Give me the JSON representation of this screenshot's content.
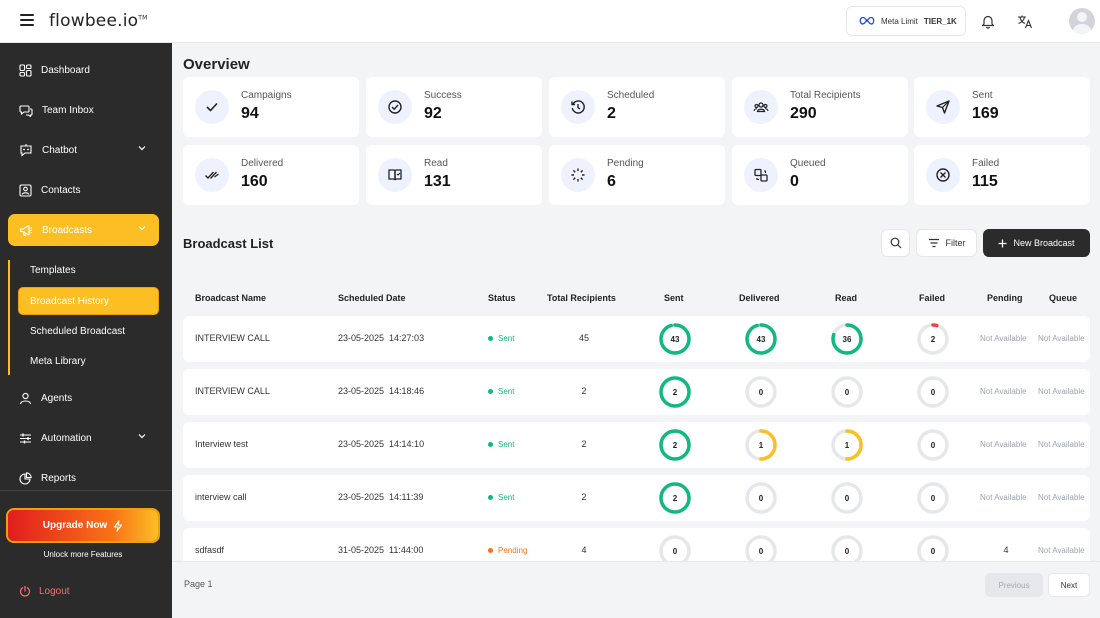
{
  "header": {
    "logo": "flowbee.io",
    "logo_mark": "TM",
    "meta_limit_label": "Meta Limit",
    "meta_limit_tier": "TIER_1K"
  },
  "sidebar": {
    "items": [
      {
        "label": "Dashboard",
        "icon": "dashboard-icon"
      },
      {
        "label": "Team Inbox",
        "icon": "chat-icon"
      },
      {
        "label": "Chatbot",
        "icon": "chatbot-icon"
      },
      {
        "label": "Contacts",
        "icon": "contacts-icon"
      },
      {
        "label": "Broadcasts",
        "icon": "megaphone-icon"
      },
      {
        "label": "Agents",
        "icon": "agents-icon"
      },
      {
        "label": "Automation",
        "icon": "sliders-icon"
      },
      {
        "label": "Reports",
        "icon": "pie-chart-icon"
      }
    ],
    "sub_items": [
      "Templates",
      "Broadcast History",
      "Scheduled Broadcast",
      "Meta Library"
    ],
    "upgrade_label": "Upgrade Now",
    "unlock_text": "Unlock more Features",
    "logout_label": "Logout"
  },
  "overview": {
    "title": "Overview",
    "stats": [
      {
        "label": "Campaigns",
        "value": "94"
      },
      {
        "label": "Success",
        "value": "92"
      },
      {
        "label": "Scheduled",
        "value": "2"
      },
      {
        "label": "Total Recipients",
        "value": "290"
      },
      {
        "label": "Sent",
        "value": "169"
      },
      {
        "label": "Delivered",
        "value": "160"
      },
      {
        "label": "Read",
        "value": "131"
      },
      {
        "label": "Pending",
        "value": "6"
      },
      {
        "label": "Queued",
        "value": "0"
      },
      {
        "label": "Failed",
        "value": "115"
      }
    ]
  },
  "broadcast_list": {
    "title": "Broadcast List",
    "filter_label": "Filter",
    "new_label": "New Broadcast",
    "columns": [
      "Broadcast Name",
      "Scheduled Date",
      "Status",
      "Total Recipients",
      "Sent",
      "Delivered",
      "Read",
      "Failed",
      "Pending",
      "Queue"
    ],
    "rows": [
      {
        "name": "INTERVIEW CALL",
        "date": "23-05-2025  14:27:03",
        "status": "Sent",
        "total": "45",
        "sent": "43",
        "delivered": "43",
        "read": "36",
        "failed": "2",
        "pending": "Not Available",
        "queue": "Not Available"
      },
      {
        "name": "INTERVIEW CALL",
        "date": "23-05-2025  14:18:46",
        "status": "Sent",
        "total": "2",
        "sent": "2",
        "delivered": "0",
        "read": "0",
        "failed": "0",
        "pending": "Not Available",
        "queue": "Not Available"
      },
      {
        "name": "Interview test",
        "date": "23-05-2025  14:14:10",
        "status": "Sent",
        "total": "2",
        "sent": "2",
        "delivered": "1",
        "read": "1",
        "failed": "0",
        "pending": "Not Available",
        "queue": "Not Available"
      },
      {
        "name": "interview call",
        "date": "23-05-2025  14:11:39",
        "status": "Sent",
        "total": "2",
        "sent": "2",
        "delivered": "0",
        "read": "0",
        "failed": "0",
        "pending": "Not Available",
        "queue": "Not Available"
      },
      {
        "name": "sdfasdf",
        "date": "31-05-2025  11:44:00",
        "status": "Pending",
        "total": "4",
        "sent": "0",
        "delivered": "0",
        "read": "0",
        "failed": "0",
        "pending": "4",
        "queue": "Not Available"
      }
    ]
  },
  "pagination": {
    "page_label": "Page 1",
    "prev_label": "Previous",
    "next_label": "Next"
  },
  "colors": {
    "accent": "#fbbf24",
    "sent_green": "#10b981",
    "pending_orange": "#f97316",
    "ring_yellow": "#fbbf24",
    "ring_red": "#ef4444",
    "ring_track": "#e5e7eb"
  }
}
